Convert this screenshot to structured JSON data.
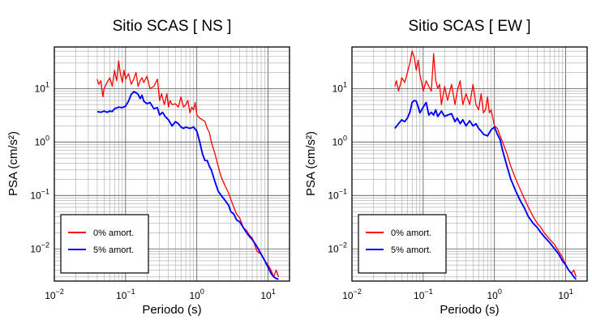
{
  "chart_data": [
    {
      "type": "line",
      "title": "Sitio SCAS [ NS ]",
      "xlabel": "Periodo (s)",
      "ylabel": "PSA (cm/s²)",
      "xscale": "log",
      "yscale": "log",
      "xlim": [
        0.01,
        20
      ],
      "ylim": [
        0.0025,
        60
      ],
      "xticks": [
        0.01,
        0.1,
        1,
        10
      ],
      "xtick_labels": [
        {
          "base": "10",
          "exp": "−2"
        },
        {
          "base": "10",
          "exp": "−1"
        },
        {
          "base": "10",
          "exp": "0"
        },
        {
          "base": "10",
          "exp": "1"
        }
      ],
      "yticks": [
        0.01,
        0.1,
        1,
        10
      ],
      "ytick_labels": [
        {
          "base": "10",
          "exp": "−2"
        },
        {
          "base": "10",
          "exp": "−1"
        },
        {
          "base": "10",
          "exp": "0"
        },
        {
          "base": "10",
          "exp": "1"
        }
      ],
      "grid": true,
      "legend_position": "bottom-left",
      "series": [
        {
          "name": "0% amort.",
          "color": "#ff0000",
          "x": [
            0.04,
            0.042,
            0.045,
            0.048,
            0.05,
            0.055,
            0.06,
            0.065,
            0.07,
            0.075,
            0.08,
            0.085,
            0.09,
            0.095,
            0.1,
            0.11,
            0.12,
            0.13,
            0.14,
            0.15,
            0.16,
            0.17,
            0.18,
            0.2,
            0.22,
            0.25,
            0.28,
            0.3,
            0.32,
            0.35,
            0.38,
            0.4,
            0.42,
            0.45,
            0.5,
            0.55,
            0.6,
            0.65,
            0.7,
            0.75,
            0.8,
            0.85,
            0.9,
            0.95,
            1.0,
            1.1,
            1.2,
            1.3,
            1.4,
            1.5,
            1.6,
            1.8,
            2.0,
            2.2,
            2.5,
            2.8,
            3.0,
            3.3,
            3.6,
            4.0,
            4.5,
            5.0,
            5.5,
            6.0,
            6.5,
            7.0,
            8.0,
            9.0,
            10.0,
            11.0,
            12.0,
            13.0,
            14.0
          ],
          "y": [
            15,
            12,
            14,
            7,
            10,
            13,
            16,
            11,
            22,
            14,
            33,
            18,
            13,
            22,
            15,
            19,
            12,
            15,
            20,
            11,
            14,
            16,
            13,
            17,
            10,
            11,
            15,
            6,
            8,
            5,
            8,
            4.5,
            6,
            5,
            5.2,
            4.5,
            7,
            4.5,
            5,
            6,
            3.5,
            4.5,
            4,
            5.5,
            3.2,
            2.8,
            2.6,
            2.4,
            1.8,
            1.5,
            1.0,
            0.6,
            0.35,
            0.22,
            0.15,
            0.11,
            0.085,
            0.06,
            0.045,
            0.038,
            0.025,
            0.022,
            0.018,
            0.016,
            0.012,
            0.009,
            0.008,
            0.006,
            0.005,
            0.004,
            0.003,
            0.004,
            0.003
          ]
        },
        {
          "name": "5% amort.",
          "color": "#0000ff",
          "x": [
            0.04,
            0.045,
            0.05,
            0.055,
            0.06,
            0.065,
            0.07,
            0.08,
            0.09,
            0.1,
            0.11,
            0.12,
            0.13,
            0.14,
            0.15,
            0.16,
            0.17,
            0.18,
            0.2,
            0.22,
            0.25,
            0.28,
            0.3,
            0.33,
            0.36,
            0.4,
            0.45,
            0.5,
            0.55,
            0.6,
            0.65,
            0.7,
            0.8,
            0.9,
            1.0,
            1.1,
            1.2,
            1.3,
            1.4,
            1.5,
            1.6,
            1.8,
            2.0,
            2.2,
            2.5,
            2.8,
            3.0,
            3.3,
            3.6,
            4.0,
            4.5,
            5.0,
            5.5,
            6.0,
            7.0,
            8.0,
            9.0,
            10.0,
            11.0,
            12.0,
            13.0,
            14.0
          ],
          "y": [
            3.7,
            3.6,
            3.8,
            3.6,
            3.8,
            3.7,
            4.2,
            4.5,
            4.4,
            4.7,
            5.8,
            7.8,
            8.7,
            8.4,
            7.8,
            6.5,
            7.5,
            5.8,
            5.2,
            5.5,
            4.2,
            4.4,
            3.2,
            3.6,
            3.0,
            2.6,
            2.0,
            2.4,
            2.2,
            1.9,
            1.8,
            1.9,
            1.8,
            1.9,
            1.6,
            1.0,
            0.6,
            0.45,
            0.45,
            0.35,
            0.3,
            0.18,
            0.12,
            0.1,
            0.08,
            0.065,
            0.05,
            0.045,
            0.035,
            0.032,
            0.025,
            0.02,
            0.017,
            0.015,
            0.011,
            0.008,
            0.006,
            0.0045,
            0.0035,
            0.003,
            0.0028,
            0.0027
          ]
        }
      ]
    },
    {
      "type": "line",
      "title": "Sitio SCAS [ EW ]",
      "xlabel": "Periodo (s)",
      "ylabel": "PSA (cm/s²)",
      "xscale": "log",
      "yscale": "log",
      "xlim": [
        0.01,
        20
      ],
      "ylim": [
        0.0025,
        60
      ],
      "xticks": [
        0.01,
        0.1,
        1,
        10
      ],
      "xtick_labels": [
        {
          "base": "10",
          "exp": "−2"
        },
        {
          "base": "10",
          "exp": "−1"
        },
        {
          "base": "10",
          "exp": "0"
        },
        {
          "base": "10",
          "exp": "1"
        }
      ],
      "yticks": [
        0.01,
        0.1,
        1,
        10
      ],
      "ytick_labels": [
        {
          "base": "10",
          "exp": "−2"
        },
        {
          "base": "10",
          "exp": "−1"
        },
        {
          "base": "10",
          "exp": "0"
        },
        {
          "base": "10",
          "exp": "1"
        }
      ],
      "grid": true,
      "legend_position": "bottom-left",
      "series": [
        {
          "name": "0% amort.",
          "color": "#ff0000",
          "x": [
            0.04,
            0.042,
            0.045,
            0.048,
            0.05,
            0.055,
            0.06,
            0.065,
            0.07,
            0.075,
            0.08,
            0.085,
            0.09,
            0.095,
            0.1,
            0.11,
            0.12,
            0.13,
            0.14,
            0.15,
            0.16,
            0.17,
            0.18,
            0.2,
            0.22,
            0.25,
            0.28,
            0.3,
            0.33,
            0.36,
            0.4,
            0.45,
            0.5,
            0.55,
            0.6,
            0.65,
            0.7,
            0.75,
            0.8,
            0.85,
            0.9,
            0.95,
            1.0,
            1.1,
            1.2,
            1.3,
            1.5,
            1.7,
            2.0,
            2.3,
            2.6,
            3.0,
            3.5,
            4.0,
            4.5,
            5.0,
            6.0,
            7.0,
            8.0,
            9.0,
            10.0,
            11.0,
            12.0,
            13.0,
            14.0
          ],
          "y": [
            11,
            14,
            9,
            12,
            16,
            13,
            20,
            30,
            50,
            38,
            22,
            34,
            18,
            13,
            9,
            14,
            11,
            9,
            45,
            14,
            10,
            12,
            5,
            11,
            6,
            12,
            5,
            9,
            14,
            5,
            8,
            5,
            12,
            5,
            4,
            8,
            3.5,
            4,
            7,
            3.5,
            4,
            2.8,
            2.0,
            1.8,
            1.3,
            1.0,
            0.6,
            0.35,
            0.2,
            0.13,
            0.09,
            0.06,
            0.04,
            0.03,
            0.025,
            0.02,
            0.015,
            0.012,
            0.009,
            0.007,
            0.005,
            0.004,
            0.0035,
            0.004,
            0.003
          ]
        },
        {
          "name": "5% amort.",
          "color": "#0000ff",
          "x": [
            0.04,
            0.045,
            0.05,
            0.055,
            0.06,
            0.065,
            0.07,
            0.075,
            0.08,
            0.085,
            0.09,
            0.1,
            0.11,
            0.12,
            0.13,
            0.14,
            0.15,
            0.16,
            0.18,
            0.2,
            0.22,
            0.25,
            0.28,
            0.3,
            0.33,
            0.36,
            0.4,
            0.45,
            0.5,
            0.55,
            0.6,
            0.65,
            0.7,
            0.8,
            0.9,
            1.0,
            1.1,
            1.2,
            1.3,
            1.5,
            1.7,
            2.0,
            2.3,
            2.6,
            3.0,
            3.5,
            4.0,
            4.5,
            5.0,
            6.0,
            7.0,
            8.0,
            9.0,
            10.0,
            11.0,
            12.0,
            13.0,
            14.0
          ],
          "y": [
            1.8,
            2.2,
            2.6,
            2.4,
            2.8,
            3.6,
            5.5,
            6.0,
            5.8,
            4.5,
            3.5,
            4.5,
            5.5,
            3.2,
            3.6,
            3.2,
            4.0,
            3.0,
            3.8,
            3.0,
            3.2,
            3.4,
            2.4,
            2.8,
            2.2,
            2.6,
            2.0,
            2.5,
            2.0,
            2.2,
            1.8,
            1.6,
            1.4,
            1.3,
            1.7,
            1.9,
            1.4,
            1.1,
            0.7,
            0.35,
            0.2,
            0.12,
            0.08,
            0.06,
            0.04,
            0.03,
            0.025,
            0.02,
            0.017,
            0.013,
            0.01,
            0.008,
            0.006,
            0.005,
            0.004,
            0.0035,
            0.003,
            0.0027
          ]
        }
      ]
    }
  ]
}
